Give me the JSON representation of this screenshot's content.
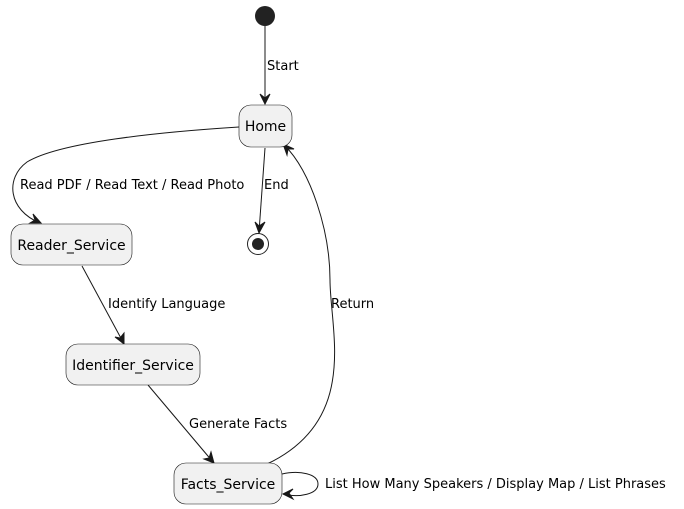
{
  "diagram": {
    "states": {
      "home": "Home",
      "reader": "Reader_Service",
      "identifier": "Identifier_Service",
      "facts": "Facts_Service"
    },
    "transitions": {
      "start": "Start",
      "read": "Read PDF / Read Text / Read Photo",
      "end": "End",
      "identify": "Identify Language",
      "return": "Return",
      "generate": "Generate Facts",
      "self_loop": "List How Many Speakers / Display Map / List Phrases"
    }
  }
}
